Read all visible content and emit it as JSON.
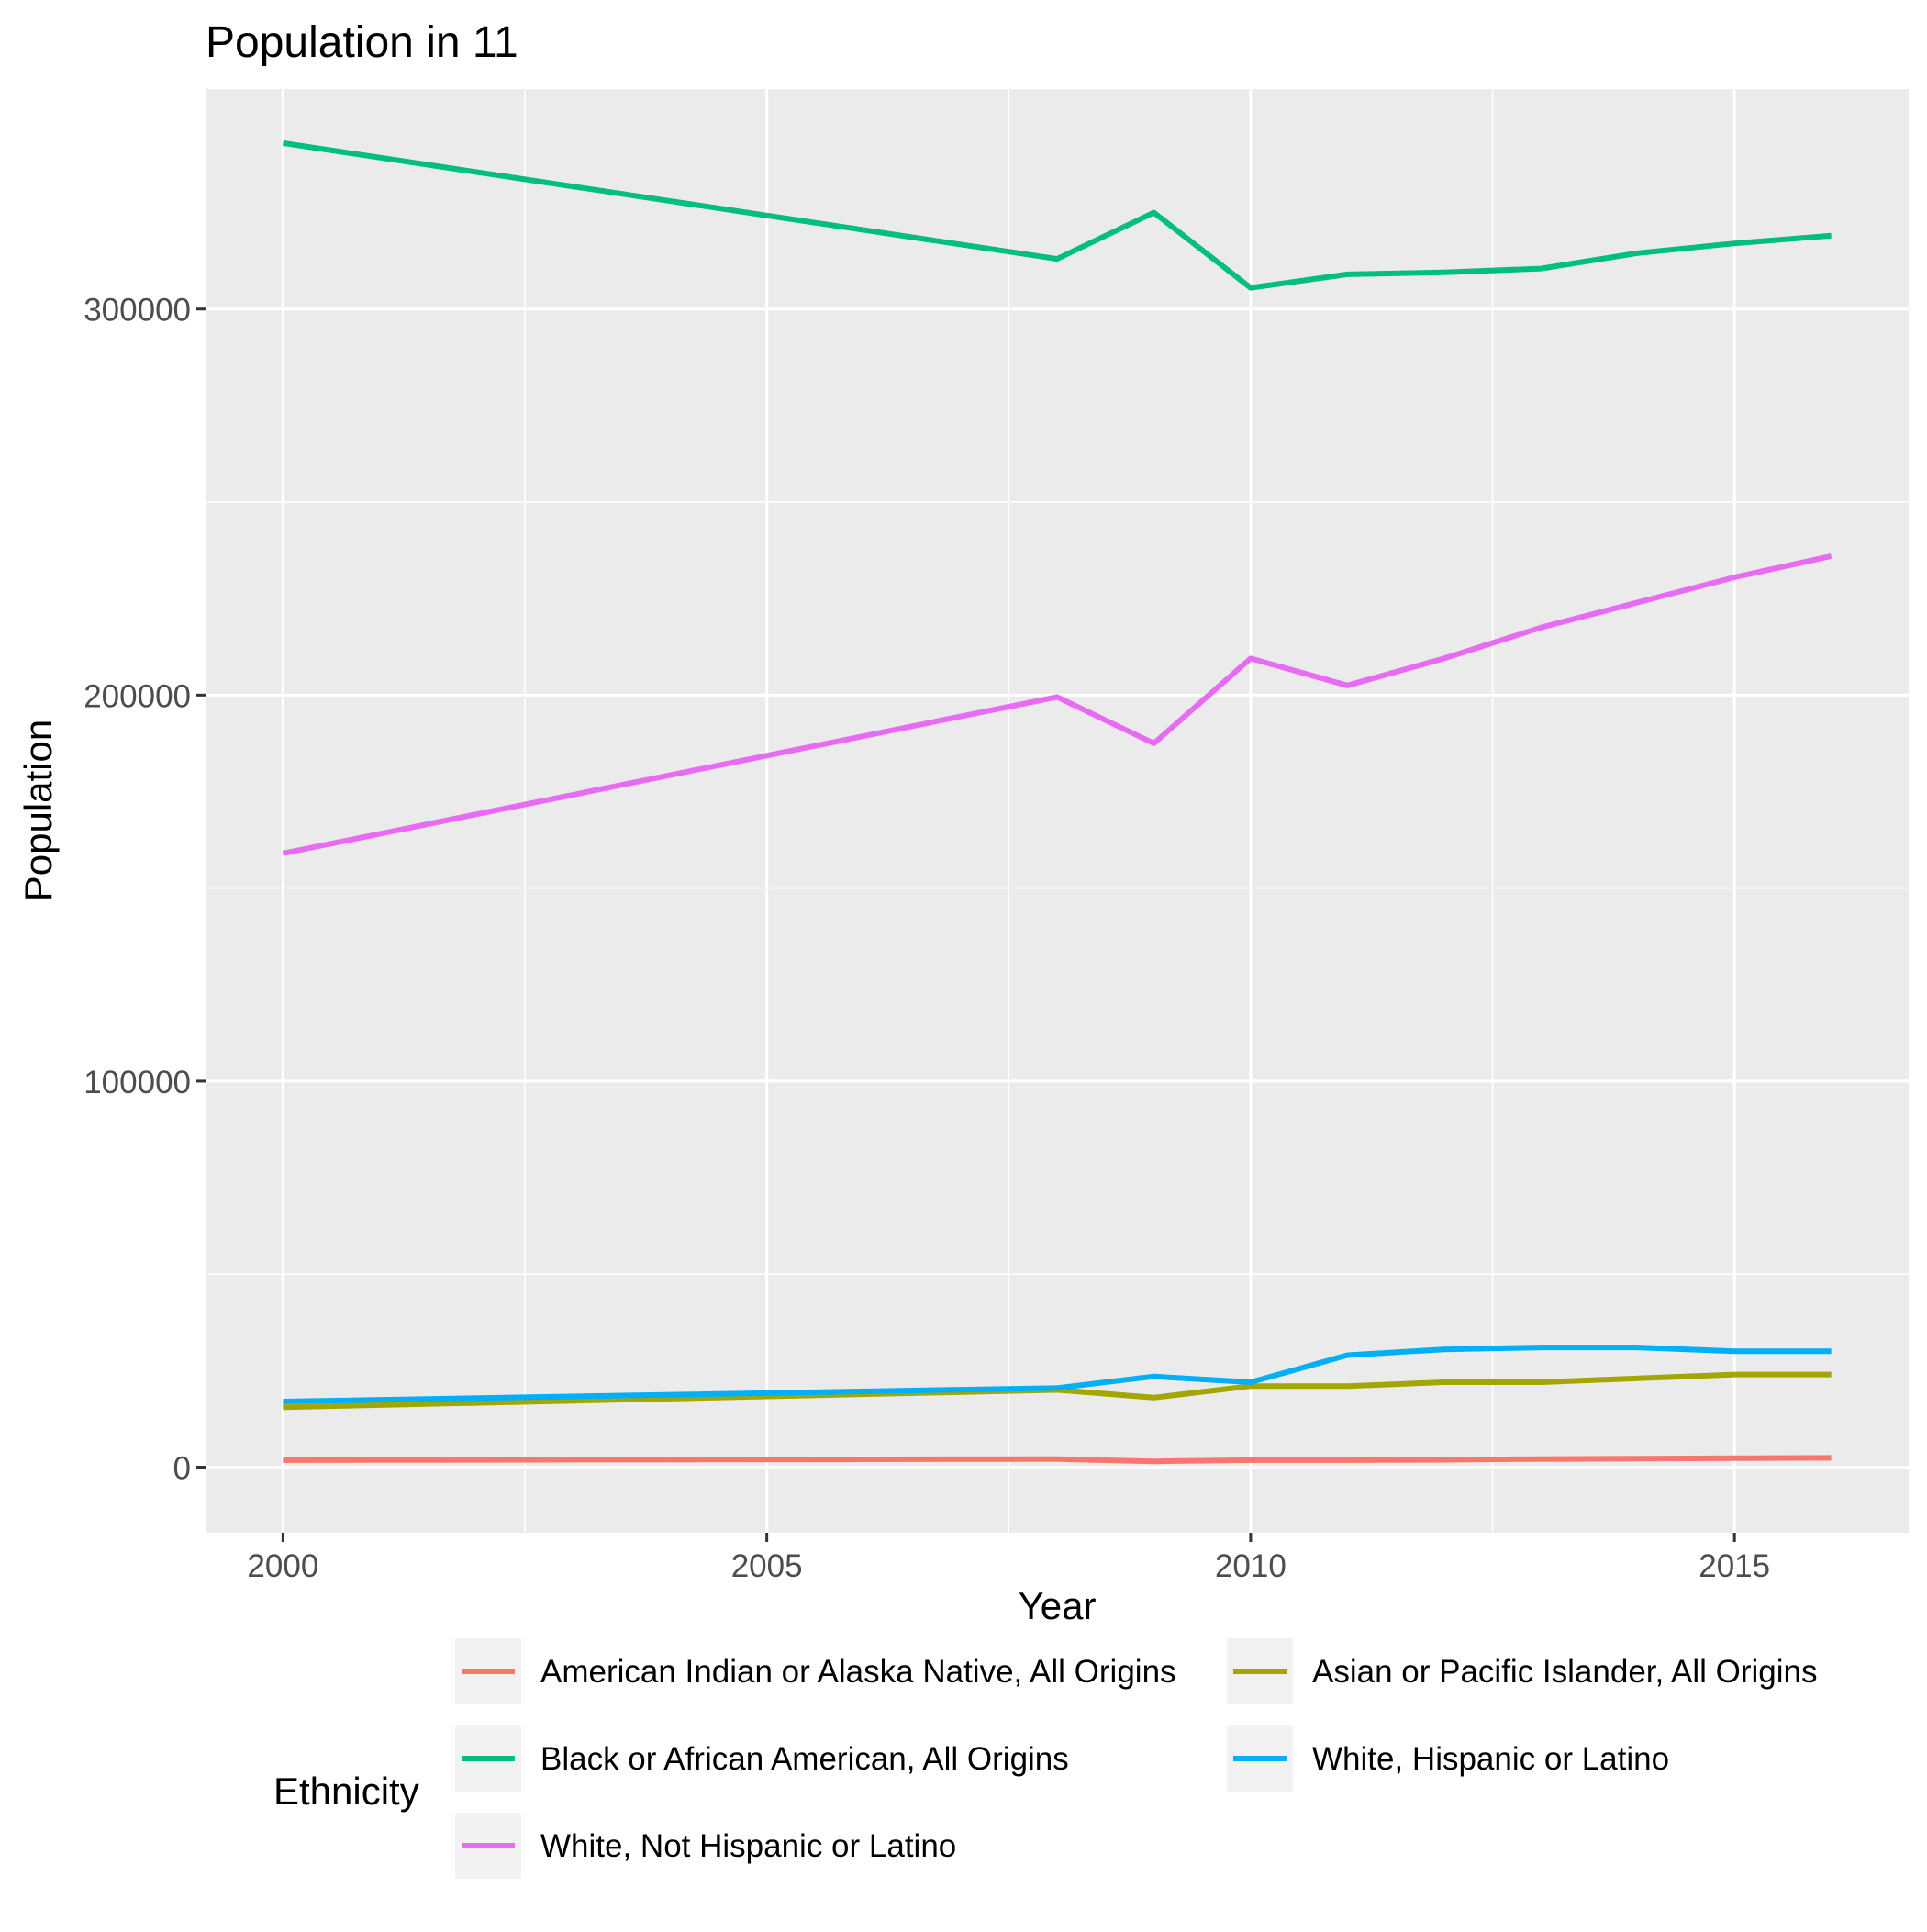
{
  "chart_data": {
    "type": "line",
    "title": "Population in 11",
    "xlabel": "Year",
    "ylabel": "Population",
    "xlim": [
      1999.2,
      2016.8
    ],
    "ylim": [
      -17000,
      357000
    ],
    "x_ticks": [
      2000,
      2005,
      2010,
      2015
    ],
    "x_minor": [
      2002.5,
      2007.5,
      2012.5
    ],
    "y_ticks": [
      0,
      100000,
      200000,
      300000
    ],
    "y_minor": [
      50000,
      150000,
      250000
    ],
    "grid": true,
    "legend_title": "Ethnicity",
    "legend_position": "bottom",
    "series": [
      {
        "name": "American Indian or Alaska Native, All Origins",
        "color": "#F8766D",
        "x": [
          2000,
          2008,
          2009,
          2010,
          2011,
          2012,
          2013,
          2014,
          2015,
          2016
        ],
        "values": [
          1800,
          2100,
          1500,
          1800,
          1800,
          1900,
          2100,
          2200,
          2300,
          2400
        ]
      },
      {
        "name": "Asian or Pacific Islander, All Origins",
        "color": "#A3A500",
        "x": [
          2000,
          2008,
          2009,
          2010,
          2011,
          2012,
          2013,
          2014,
          2015,
          2016
        ],
        "values": [
          15500,
          20000,
          18000,
          21000,
          21000,
          22000,
          22000,
          23000,
          24000,
          24000
        ]
      },
      {
        "name": "Black or African American, All Origins",
        "color": "#00BF7D",
        "x": [
          2000,
          2008,
          2009,
          2010,
          2011,
          2012,
          2013,
          2014,
          2015,
          2016
        ],
        "values": [
          343000,
          313000,
          325000,
          305500,
          309000,
          309500,
          310500,
          314500,
          317000,
          319000
        ]
      },
      {
        "name": "White, Hispanic or Latino",
        "color": "#00B0F6",
        "x": [
          2000,
          2008,
          2009,
          2010,
          2011,
          2012,
          2013,
          2014,
          2015,
          2016
        ],
        "values": [
          17000,
          20500,
          23500,
          22000,
          29000,
          30500,
          31000,
          31000,
          30000,
          30000
        ]
      },
      {
        "name": "White, Not Hispanic or Latino",
        "color": "#E76BF3",
        "x": [
          2000,
          2008,
          2009,
          2010,
          2011,
          2012,
          2013,
          2014,
          2015,
          2016
        ],
        "values": [
          159000,
          199500,
          187500,
          209500,
          202500,
          209500,
          217500,
          224000,
          230500,
          236000
        ]
      }
    ]
  }
}
